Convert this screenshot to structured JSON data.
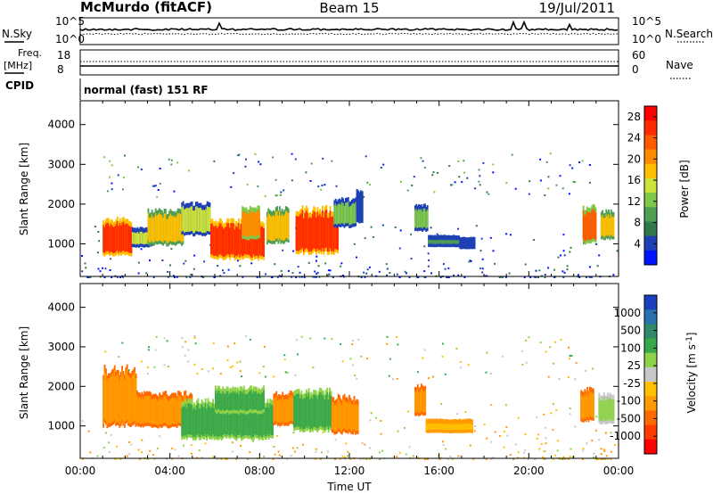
{
  "header": {
    "station": "McMurdo (fitACF)",
    "beam": "Beam 15",
    "date": "19/Jul/2011"
  },
  "params": {
    "nsky_label": "N.Sky",
    "nsky_ticks": [
      "10^5",
      "10^0"
    ],
    "nsearch_label": "N.Search",
    "nsearch_ticks": [
      "10^5",
      "10^0"
    ],
    "freq_label": "Freq.",
    "freq_unit": "[MHz]",
    "freq_ticks": [
      "18",
      "8"
    ],
    "nave_label": "Nave",
    "nave_ticks": [
      "60",
      "0"
    ],
    "cpid_label": "CPID",
    "cpid_text": "normal (fast) 151 RF"
  },
  "chart_data": [
    {
      "type": "heatmap",
      "name": "power",
      "ylabel": "Slant Range [km]",
      "yticks": [
        "1000",
        "2000",
        "3000",
        "4000"
      ],
      "ylim": [
        180,
        4600
      ],
      "xlim": [
        0,
        24
      ],
      "colorbar": {
        "label": "Power [dB]",
        "ticks": [
          "4",
          "8",
          "12",
          "16",
          "20",
          "24",
          "28"
        ],
        "colors": [
          "#0015ff",
          "#1e40b5",
          "#2f7a48",
          "#4e9e53",
          "#7fc84a",
          "#cde23a",
          "#ffbf00",
          "#ff8a00",
          "#ff5a00",
          "#ff2a00",
          "#ff0000"
        ]
      },
      "regions": [
        {
          "t": [
            1.0,
            2.3
          ],
          "r": [
            800,
            1500
          ],
          "level": 28
        },
        {
          "t": [
            2.3,
            3.2
          ],
          "r": [
            1000,
            1300
          ],
          "level": 16
        },
        {
          "t": [
            3.0,
            4.6
          ],
          "r": [
            1050,
            1700
          ],
          "level": 20
        },
        {
          "t": [
            4.5,
            5.8
          ],
          "r": [
            1300,
            1900
          ],
          "level": 16
        },
        {
          "t": [
            5.8,
            8.2
          ],
          "r": [
            700,
            1450
          ],
          "level": 28
        },
        {
          "t": [
            7.2,
            8.0
          ],
          "r": [
            1200,
            1800
          ],
          "level": 22
        },
        {
          "t": [
            8.3,
            9.3
          ],
          "r": [
            1100,
            1750
          ],
          "level": 20
        },
        {
          "t": [
            9.6,
            11.5
          ],
          "r": [
            850,
            1750
          ],
          "level": 28
        },
        {
          "t": [
            11.3,
            12.3
          ],
          "r": [
            1500,
            2000
          ],
          "level": 12
        },
        {
          "t": [
            12.3,
            12.6
          ],
          "r": [
            1600,
            2200
          ],
          "level": 6
        },
        {
          "t": [
            14.9,
            15.5
          ],
          "r": [
            1400,
            1850
          ],
          "level": 12
        },
        {
          "t": [
            15.5,
            16.9
          ],
          "r": [
            1000,
            1100
          ],
          "level": 10
        },
        {
          "t": [
            16.9,
            17.6
          ],
          "r": [
            950,
            1050
          ],
          "level": 6
        },
        {
          "t": [
            22.4,
            23.0
          ],
          "r": [
            1100,
            1800
          ],
          "level": 24
        },
        {
          "t": [
            23.2,
            23.8
          ],
          "r": [
            1200,
            1700
          ],
          "level": 20
        }
      ]
    },
    {
      "type": "heatmap",
      "name": "velocity",
      "ylabel": "Slant Range [km]",
      "yticks": [
        "1000",
        "2000",
        "3000",
        "4000"
      ],
      "xticks": [
        "00:00",
        "04:00",
        "08:00",
        "12:00",
        "16:00",
        "20:00",
        "00:00"
      ],
      "xlabel": "Time UT",
      "ylim": [
        180,
        4600
      ],
      "xlim": [
        0,
        24
      ],
      "colorbar": {
        "label": "Velocity [m s^-1]",
        "ticks": [
          "1000",
          "500",
          "100",
          "25",
          "-25",
          "-100",
          "-500",
          "-1000"
        ],
        "colors": [
          "#1a3fbf",
          "#2a6fb0",
          "#2f8a6a",
          "#3aa84a",
          "#8fd24a",
          "#c8c8c8",
          "#ffc000",
          "#ff9a00",
          "#ff6a00",
          "#ff3a00",
          "#ff0000"
        ]
      },
      "regions": [
        {
          "t": [
            1.0,
            2.5
          ],
          "r": [
            1100,
            2300
          ],
          "level": -100
        },
        {
          "t": [
            2.5,
            5.0
          ],
          "r": [
            1050,
            1700
          ],
          "level": -100
        },
        {
          "t": [
            4.5,
            8.6
          ],
          "r": [
            750,
            1500
          ],
          "level": 100
        },
        {
          "t": [
            6.0,
            8.2
          ],
          "r": [
            1400,
            1850
          ],
          "level": 100
        },
        {
          "t": [
            8.6,
            9.5
          ],
          "r": [
            1100,
            1700
          ],
          "level": -100
        },
        {
          "t": [
            9.5,
            11.2
          ],
          "r": [
            950,
            1750
          ],
          "level": 100
        },
        {
          "t": [
            11.2,
            12.4
          ],
          "r": [
            900,
            1600
          ],
          "level": -100
        },
        {
          "t": [
            14.9,
            15.4
          ],
          "r": [
            1350,
            1900
          ],
          "level": -100
        },
        {
          "t": [
            15.4,
            17.5
          ],
          "r": [
            900,
            1050
          ],
          "level": -25
        },
        {
          "t": [
            22.3,
            22.9
          ],
          "r": [
            1200,
            1800
          ],
          "level": -100
        },
        {
          "t": [
            23.1,
            23.8
          ],
          "r": [
            1150,
            1700
          ],
          "level": 25
        }
      ]
    }
  ]
}
